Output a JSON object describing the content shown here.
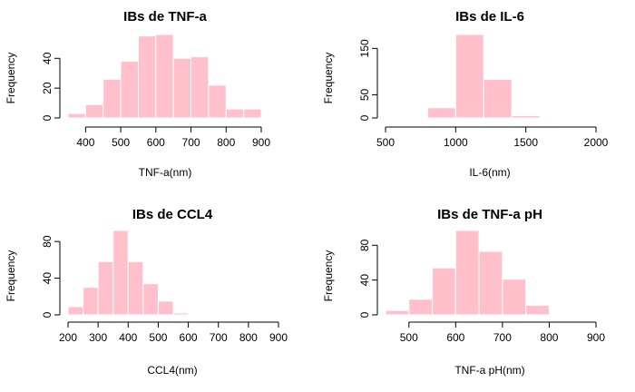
{
  "colors": {
    "bar_fill": "#FFC0CB",
    "bar_border": "#FFFFFF",
    "axis": "#000000"
  },
  "chart_data": [
    {
      "type": "bar",
      "title": "IBs de TNF-a",
      "xlabel": "TNF-a(nm)",
      "ylabel": "Frequency",
      "bin_edges": [
        350,
        400,
        450,
        500,
        550,
        600,
        650,
        700,
        750,
        800,
        850,
        900
      ],
      "values": [
        3,
        9,
        26,
        38,
        55,
        56,
        40,
        41,
        22,
        6,
        6
      ],
      "xticks": [
        400,
        500,
        600,
        700,
        800,
        900
      ],
      "yticks": [
        0,
        20,
        40
      ],
      "xlim": [
        350,
        900
      ],
      "ylim": [
        0,
        56
      ]
    },
    {
      "type": "bar",
      "title": "IBs de IL-6",
      "xlabel": "IL-6(nm)",
      "ylabel": "Frequency",
      "bin_edges": [
        800,
        1000,
        1200,
        1400,
        1600
      ],
      "values": [
        22,
        180,
        83,
        5
      ],
      "xticks": [
        500,
        1000,
        1500,
        2000
      ],
      "yticks": [
        0,
        50,
        150
      ],
      "xlim": [
        500,
        2000
      ],
      "ylim": [
        0,
        180
      ]
    },
    {
      "type": "bar",
      "title": "IBs de CCL4",
      "xlabel": "CCL4(nm)",
      "ylabel": "Frequency",
      "bin_edges": [
        200,
        250,
        300,
        350,
        400,
        450,
        500,
        550,
        600
      ],
      "values": [
        9,
        30,
        58,
        92,
        58,
        34,
        15,
        2
      ],
      "xticks": [
        200,
        300,
        400,
        500,
        600,
        700,
        800,
        900
      ],
      "yticks": [
        0,
        40,
        80
      ],
      "xlim": [
        200,
        900
      ],
      "ylim": [
        0,
        92
      ]
    },
    {
      "type": "bar",
      "title": "IBs de TNF-a pH",
      "xlabel": "TNF-a pH(nm)",
      "ylabel": "Frequency",
      "bin_edges": [
        450,
        500,
        550,
        600,
        650,
        700,
        750,
        800
      ],
      "values": [
        5,
        18,
        54,
        97,
        73,
        41,
        11
      ],
      "xticks": [
        500,
        600,
        700,
        800,
        900
      ],
      "yticks": [
        0,
        40,
        80
      ],
      "xlim": [
        450,
        900
      ],
      "ylim": [
        0,
        97
      ]
    }
  ]
}
